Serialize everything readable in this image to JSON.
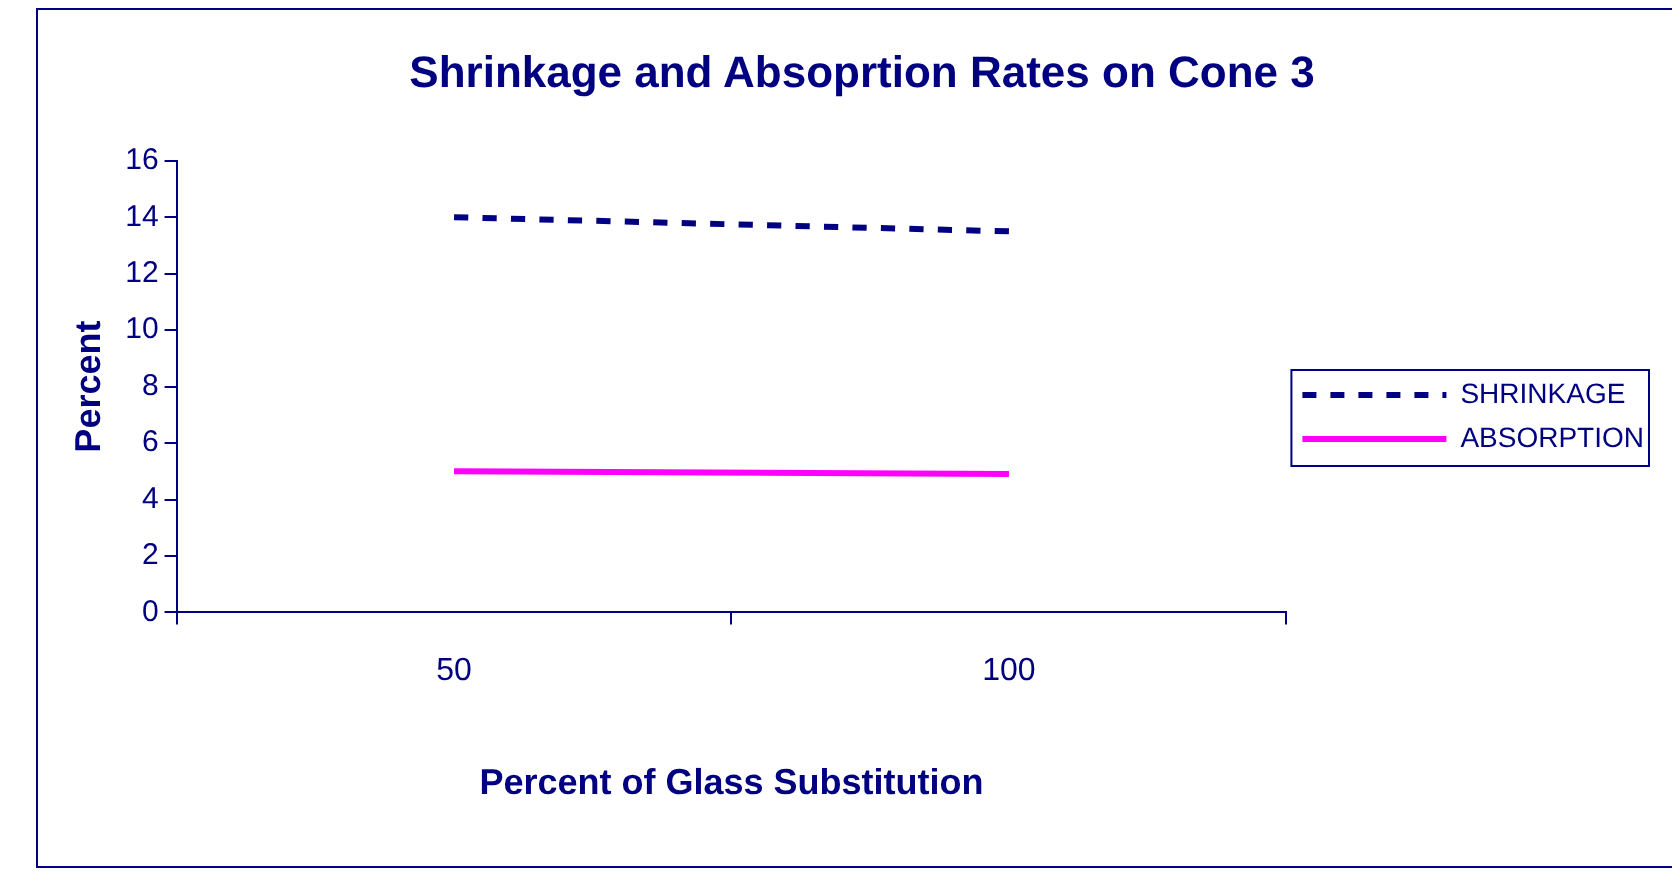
{
  "chart_data": {
    "type": "line",
    "title": "Shrinkage and Absoprtion Rates on Cone 3",
    "xlabel": "Percent of Glass Substitution",
    "ylabel": "Percent",
    "categories": [
      "50",
      "100"
    ],
    "series": [
      {
        "name": "SHRINKAGE",
        "color": "#000080",
        "values": [
          14.0,
          13.5
        ],
        "line_style": "dotted"
      },
      {
        "name": "ABSORPTION",
        "color": "#ff00ff",
        "values": [
          5.0,
          4.9
        ],
        "line_style": "solid"
      }
    ],
    "ylim": [
      0,
      16
    ],
    "yticks": [
      0,
      2,
      4,
      6,
      8,
      10,
      12,
      14,
      16
    ],
    "grid": false,
    "legend": "right",
    "marker": "none"
  }
}
